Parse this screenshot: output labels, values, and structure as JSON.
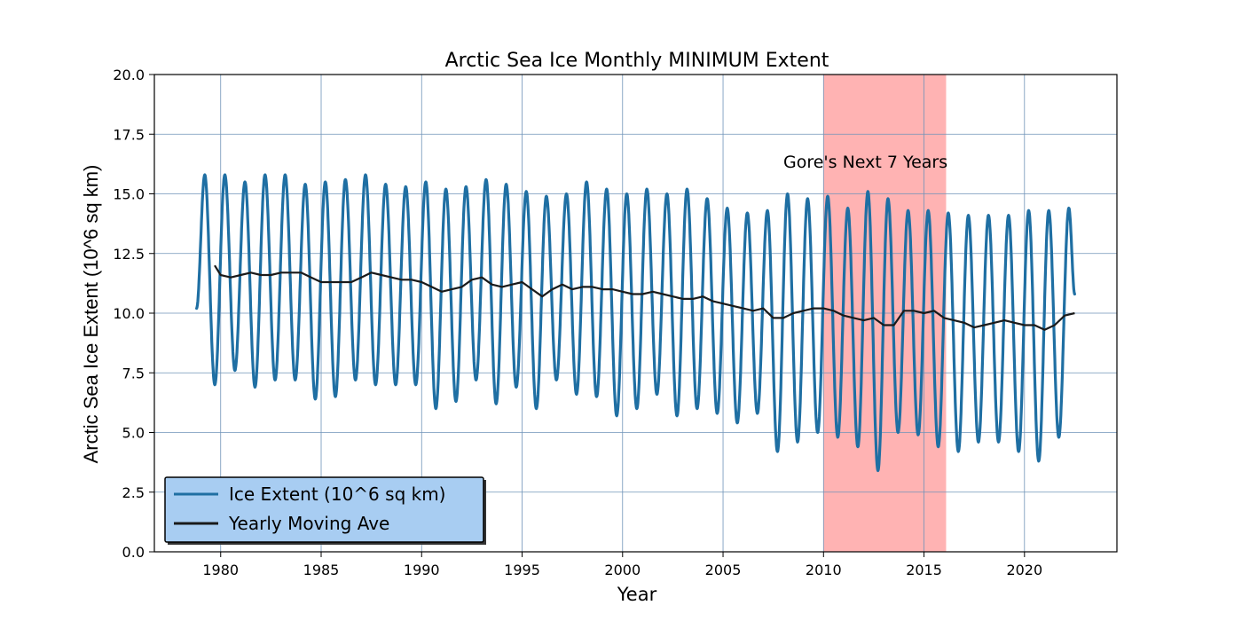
{
  "chart_data": {
    "type": "line",
    "title": "Arctic Sea Ice Monthly MINIMUM Extent",
    "xlabel": "Year",
    "ylabel": "Arctic Sea Ice Extent (10^6 sq km)",
    "xlim": [
      1976.7,
      2024.6
    ],
    "ylim": [
      0,
      20
    ],
    "xticks": [
      1980,
      1985,
      1990,
      1995,
      2000,
      2005,
      2010,
      2015,
      2020
    ],
    "yticks": [
      0.0,
      2.5,
      5.0,
      7.5,
      10.0,
      12.5,
      15.0,
      17.5,
      20.0
    ],
    "grid": true,
    "legend_position": "lower-left",
    "highlight_span": {
      "x_start": 2010.0,
      "x_end": 2016.1,
      "label": "Gore's Next 7 Years",
      "label_x": 2008.0,
      "label_y": 16.1,
      "color": "#ffb3b3"
    },
    "series": [
      {
        "name": "Ice Extent (10^6 sq km)",
        "color": "#1f6fa3",
        "cycle": "seasonal",
        "start_year": 1978.8,
        "end_year": 2022.5,
        "start_value": 10.2,
        "end_value": 10.8,
        "peak_month": 2.5,
        "annual_max": [
          [
            1979,
            15.8
          ],
          [
            1980,
            15.8
          ],
          [
            1981,
            15.5
          ],
          [
            1982,
            15.8
          ],
          [
            1983,
            15.8
          ],
          [
            1984,
            15.4
          ],
          [
            1985,
            15.5
          ],
          [
            1986,
            15.6
          ],
          [
            1987,
            15.8
          ],
          [
            1988,
            15.4
          ],
          [
            1989,
            15.3
          ],
          [
            1990,
            15.5
          ],
          [
            1991,
            15.2
          ],
          [
            1992,
            15.3
          ],
          [
            1993,
            15.6
          ],
          [
            1994,
            15.4
          ],
          [
            1995,
            15.1
          ],
          [
            1996,
            14.9
          ],
          [
            1997,
            15.0
          ],
          [
            1998,
            15.5
          ],
          [
            1999,
            15.2
          ],
          [
            2000,
            15.0
          ],
          [
            2001,
            15.2
          ],
          [
            2002,
            15.0
          ],
          [
            2003,
            15.2
          ],
          [
            2004,
            14.8
          ],
          [
            2005,
            14.4
          ],
          [
            2006,
            14.2
          ],
          [
            2007,
            14.3
          ],
          [
            2008,
            15.0
          ],
          [
            2009,
            14.8
          ],
          [
            2010,
            14.9
          ],
          [
            2011,
            14.4
          ],
          [
            2012,
            15.1
          ],
          [
            2013,
            14.8
          ],
          [
            2014,
            14.3
          ],
          [
            2015,
            14.3
          ],
          [
            2016,
            14.2
          ],
          [
            2017,
            14.1
          ],
          [
            2018,
            14.1
          ],
          [
            2019,
            14.1
          ],
          [
            2020,
            14.3
          ],
          [
            2021,
            14.3
          ],
          [
            2022,
            14.4
          ]
        ],
        "annual_min": [
          [
            1979,
            7.0
          ],
          [
            1980,
            7.6
          ],
          [
            1981,
            6.9
          ],
          [
            1982,
            7.2
          ],
          [
            1983,
            7.2
          ],
          [
            1984,
            6.4
          ],
          [
            1985,
            6.5
          ],
          [
            1986,
            7.2
          ],
          [
            1987,
            7.0
          ],
          [
            1988,
            7.0
          ],
          [
            1989,
            7.0
          ],
          [
            1990,
            6.0
          ],
          [
            1991,
            6.3
          ],
          [
            1992,
            7.2
          ],
          [
            1993,
            6.2
          ],
          [
            1994,
            6.9
          ],
          [
            1995,
            6.0
          ],
          [
            1996,
            7.2
          ],
          [
            1997,
            6.6
          ],
          [
            1998,
            6.5
          ],
          [
            1999,
            5.7
          ],
          [
            2000,
            6.0
          ],
          [
            2001,
            6.6
          ],
          [
            2002,
            5.7
          ],
          [
            2003,
            6.0
          ],
          [
            2004,
            5.8
          ],
          [
            2005,
            5.4
          ],
          [
            2006,
            5.8
          ],
          [
            2007,
            4.2
          ],
          [
            2008,
            4.6
          ],
          [
            2009,
            5.0
          ],
          [
            2010,
            4.8
          ],
          [
            2011,
            4.4
          ],
          [
            2012,
            3.4
          ],
          [
            2013,
            5.0
          ],
          [
            2014,
            4.9
          ],
          [
            2015,
            4.4
          ],
          [
            2016,
            4.2
          ],
          [
            2017,
            4.6
          ],
          [
            2018,
            4.6
          ],
          [
            2019,
            4.2
          ],
          [
            2020,
            3.8
          ],
          [
            2021,
            4.8
          ]
        ]
      },
      {
        "name": "Yearly Moving Ave",
        "color": "#1a1a1a",
        "x": [
          1979.7,
          1980.0,
          1980.5,
          1981.0,
          1981.5,
          1982.0,
          1982.5,
          1983.0,
          1983.5,
          1984.0,
          1984.5,
          1985.0,
          1985.5,
          1986.0,
          1986.5,
          1987.0,
          1987.5,
          1988.0,
          1988.5,
          1989.0,
          1989.5,
          1990.0,
          1990.5,
          1991.0,
          1991.5,
          1992.0,
          1992.5,
          1993.0,
          1993.5,
          1994.0,
          1994.5,
          1995.0,
          1995.5,
          1996.0,
          1996.5,
          1997.0,
          1997.5,
          1998.0,
          1998.5,
          1999.0,
          1999.5,
          2000.0,
          2000.5,
          2001.0,
          2001.5,
          2002.0,
          2002.5,
          2003.0,
          2003.5,
          2004.0,
          2004.5,
          2005.0,
          2005.5,
          2006.0,
          2006.5,
          2007.0,
          2007.5,
          2008.0,
          2008.5,
          2009.0,
          2009.5,
          2010.0,
          2010.5,
          2011.0,
          2011.5,
          2012.0,
          2012.5,
          2013.0,
          2013.5,
          2014.0,
          2014.5,
          2015.0,
          2015.5,
          2016.0,
          2016.5,
          2017.0,
          2017.5,
          2018.0,
          2018.5,
          2019.0,
          2019.5,
          2020.0,
          2020.5,
          2021.0,
          2021.5,
          2022.0,
          2022.5
        ],
        "y": [
          12.0,
          11.6,
          11.5,
          11.6,
          11.7,
          11.6,
          11.6,
          11.7,
          11.7,
          11.7,
          11.5,
          11.3,
          11.3,
          11.3,
          11.3,
          11.5,
          11.7,
          11.6,
          11.5,
          11.4,
          11.4,
          11.3,
          11.1,
          10.9,
          11.0,
          11.1,
          11.4,
          11.5,
          11.2,
          11.1,
          11.2,
          11.3,
          11.0,
          10.7,
          11.0,
          11.2,
          11.0,
          11.1,
          11.1,
          11.0,
          11.0,
          10.9,
          10.8,
          10.8,
          10.9,
          10.8,
          10.7,
          10.6,
          10.6,
          10.7,
          10.5,
          10.4,
          10.3,
          10.2,
          10.1,
          10.2,
          9.8,
          9.8,
          10.0,
          10.1,
          10.2,
          10.2,
          10.1,
          9.9,
          9.8,
          9.7,
          9.8,
          9.5,
          9.5,
          10.1,
          10.1,
          10.0,
          10.1,
          9.8,
          9.7,
          9.6,
          9.4,
          9.5,
          9.6,
          9.7,
          9.6,
          9.5,
          9.5,
          9.3,
          9.5,
          9.9,
          10.0
        ]
      }
    ]
  }
}
